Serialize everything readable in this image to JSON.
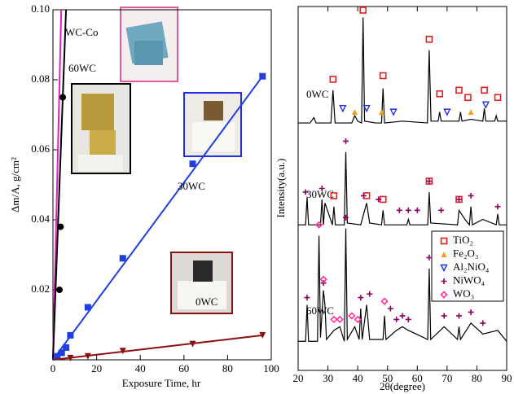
{
  "chart_data": [
    {
      "type": "line",
      "x_label": "Exposure Time, hr",
      "y_label": "Δm/A, g/cm²",
      "xlim": [
        0,
        100
      ],
      "xticks": [
        0,
        20,
        40,
        60,
        80,
        100
      ],
      "ylim": [
        0,
        0.1
      ],
      "yticks": [
        0.02,
        0.04,
        0.06,
        0.08,
        {
          "value": 0.1,
          "label": "0.10"
        }
      ],
      "series": [
        {
          "name": "WC-Co",
          "color": "#e020c0",
          "marker": "none",
          "x": [],
          "values": [],
          "fit_x": [
            0,
            3.8
          ],
          "fit_y": [
            0,
            0.1
          ]
        },
        {
          "name": "60WC",
          "color": "#000000",
          "marker": "circle",
          "x": [
            3,
            3.5,
            4.5
          ],
          "values": [
            0.02,
            0.038,
            0.075
          ],
          "fit_x": [
            0,
            6
          ],
          "fit_y": [
            0,
            0.1
          ]
        },
        {
          "name": "30WC",
          "color": "#1f3fe0",
          "marker": "square",
          "x": [
            2,
            4,
            6,
            8,
            16,
            32,
            64,
            96
          ],
          "values": [
            0.001,
            0.002,
            0.0035,
            0.007,
            0.015,
            0.029,
            0.056,
            0.081
          ],
          "fit_x": [
            0,
            96
          ],
          "fit_y": [
            0,
            0.081
          ]
        },
        {
          "name": "0WC",
          "color": "#8b1010",
          "marker": "triangle-down",
          "x": [
            8,
            16,
            32,
            64,
            96
          ],
          "values": [
            0.0005,
            0.001,
            0.0025,
            0.0045,
            0.007
          ],
          "fit_x": [
            0,
            96
          ],
          "fit_y": [
            0,
            0.007
          ]
        }
      ]
    },
    {
      "type": "xrd",
      "x_label": "2θ(degree)",
      "y_label": "Intensity(a.u.)",
      "xlim": [
        20,
        90
      ],
      "xticks": [
        20,
        30,
        40,
        50,
        60,
        70,
        80,
        90
      ],
      "ylim": [
        0,
        100
      ],
      "series": [
        {
          "name": "0WC",
          "color": "#000000",
          "x": [
            20,
            24,
            25.3,
            26,
            31,
            31.7,
            32.4,
            38,
            39,
            40,
            41.3,
            41.8,
            42.3,
            46,
            48,
            48.5,
            49,
            55,
            63.4,
            64,
            64.6,
            67,
            67.5,
            68,
            74,
            74.5,
            75,
            78,
            82,
            82.5,
            83,
            86,
            86.5,
            87,
            90
          ],
          "values": [
            68,
            68,
            69.5,
            68,
            68,
            77,
            68,
            68,
            70,
            68.5,
            68,
            97,
            68.5,
            68,
            68,
            77.5,
            68,
            68.5,
            68,
            88,
            68.5,
            68.5,
            71,
            68.5,
            68.5,
            71,
            68.5,
            69,
            68.5,
            72,
            68.5,
            68.5,
            70,
            68.5,
            68.5
          ]
        },
        {
          "name": "30WC",
          "color": "#000000",
          "x": [
            20,
            22.5,
            23,
            23.5,
            27.5,
            28,
            28.5,
            29,
            31.5,
            32,
            32.5,
            35.5,
            36,
            36.5,
            41,
            42,
            43,
            44,
            48,
            48.5,
            49,
            56.5,
            57,
            57.5,
            63.5,
            64,
            64.5,
            73.5,
            74,
            76,
            77.5,
            78,
            78.5,
            82,
            86.5,
            87,
            87.5,
            90
          ],
          "values": [
            40,
            40,
            47.5,
            40,
            40,
            47,
            40,
            46,
            40,
            45,
            40,
            40,
            60,
            40.5,
            40,
            43,
            46,
            40.5,
            40,
            44,
            40,
            40,
            41.5,
            40,
            40,
            49,
            40.5,
            40,
            44,
            41.5,
            40,
            45,
            40,
            41.5,
            40,
            43,
            40,
            40
          ]
        },
        {
          "name": "60WC",
          "color": "#000000",
          "x": [
            20,
            22.5,
            23,
            23.5,
            26.5,
            27,
            27.5,
            28.5,
            29,
            29.5,
            32,
            34,
            35.5,
            36,
            36.5,
            39,
            40.5,
            41,
            41.5,
            43,
            44,
            48.5,
            49,
            49.5,
            53,
            55,
            57,
            63.5,
            64,
            64.5,
            69,
            73.5,
            74,
            74.5,
            78,
            82,
            87,
            90
          ],
          "values": [
            8,
            8,
            18,
            8,
            8,
            37,
            9,
            22,
            18,
            8.5,
            11,
            12,
            8,
            39,
            8.5,
            12,
            8.5,
            17,
            8.5,
            18,
            8.5,
            8.5,
            15,
            8.5,
            11,
            12,
            11,
            8.5,
            28,
            8.5,
            12,
            8.5,
            12,
            8.5,
            13,
            10,
            11,
            8
          ]
        }
      ],
      "phases": [
        {
          "name": "TiO₂",
          "color": "#e02020",
          "marker": "square",
          "x": [
            41.8,
            31.7,
            48.5,
            64,
            67.5,
            74,
            77,
            82.5,
            87,
            64,
            32,
            43,
            48.5,
            74
          ],
          "values": [
            99,
            80,
            81,
            91,
            76,
            77,
            75,
            77,
            75,
            52,
            48,
            48,
            47,
            47
          ]
        },
        {
          "name": "Fe₂O₃",
          "color": "#f0a020",
          "marker": "triangle",
          "x": [
            39,
            48,
            78
          ],
          "values": [
            71,
            71,
            71
          ]
        },
        {
          "name": "Al₂NiO₄",
          "color": "#2030e0",
          "marker": "triangle-down",
          "x": [
            35,
            43,
            52,
            70,
            83
          ],
          "values": [
            72,
            72,
            71,
            71,
            73
          ]
        },
        {
          "name": "NiWO₄",
          "color": "#900060",
          "marker": "plus",
          "x": [
            22.5,
            28,
            36,
            42,
            47,
            54,
            57,
            60,
            64,
            68,
            74,
            78,
            87,
            23,
            28.5,
            36,
            41,
            44,
            51,
            53,
            55,
            57,
            64,
            69,
            74,
            78,
            82
          ],
          "values": [
            49,
            50,
            63,
            48,
            47,
            44,
            44,
            44,
            52,
            44,
            47,
            48,
            45,
            20,
            24,
            42,
            20,
            21,
            17,
            14,
            15,
            14,
            31,
            15,
            15,
            16,
            13
          ]
        },
        {
          "name": "WO₃",
          "color": "#ff30a0",
          "marker": "diamond",
          "x": [
            27,
            28.5,
            32,
            34,
            38,
            40,
            49
          ],
          "values": [
            40,
            25,
            14,
            14,
            15,
            14,
            19
          ]
        }
      ]
    }
  ]
}
